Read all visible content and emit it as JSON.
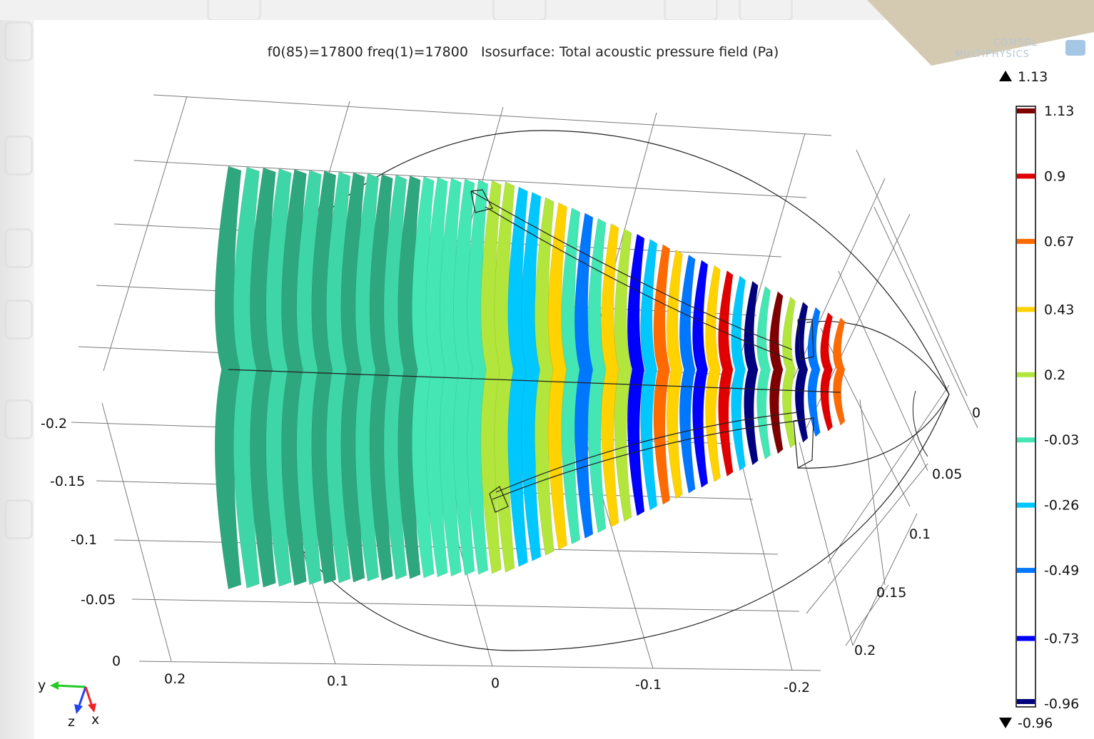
{
  "plot_title": "f0(85)=17800 freq(1)=17800   Isosurface: Total acoustic pressure field (Pa)",
  "logo": {
    "line1": "COMSOL",
    "line2": "MULTIPHYSICS"
  },
  "colors": {
    "bg": "#ffffff",
    "grid": "#7a7a7a",
    "outline": "#222222",
    "colormap": [
      "#00007f",
      "#0000ff",
      "#0077ff",
      "#00c8ff",
      "#44e6b4",
      "#b2e63c",
      "#ffd200",
      "#ff6a00",
      "#e00000",
      "#7f0000"
    ]
  },
  "triad": {
    "y_label": "y",
    "z_label": "z",
    "x_label": "x"
  },
  "chart_data": {
    "type": "isosurface-3d",
    "title": "f0(85)=17800 freq(1)=17800   Isosurface: Total acoustic pressure field (Pa)",
    "colormap": "rainbow",
    "color_range": {
      "max": 1.13,
      "min": -0.96
    },
    "range_markers": {
      "max_label": "1.13",
      "min_label": "-0.96"
    },
    "levels": [
      1.13,
      0.9,
      0.67,
      0.43,
      0.2,
      -0.03,
      -0.26,
      -0.49,
      -0.73,
      -0.96
    ],
    "level_colors": [
      "#7f0000",
      "#e00000",
      "#ff6a00",
      "#ffd200",
      "#b2e63c",
      "#44e6b4",
      "#00c8ff",
      "#0077ff",
      "#0000ff",
      "#00007f"
    ],
    "axes": {
      "vertical_ticks": [
        "-0.2",
        "-0.15",
        "-0.1",
        "-0.05",
        "0"
      ],
      "bottom_ticks": [
        "0.2",
        "0.1",
        "0",
        "-0.1",
        "-0.2"
      ],
      "right_ticks": [
        "0",
        "0.05",
        "0.1",
        "0.15",
        "0.2"
      ]
    },
    "grid": true,
    "legend": "right"
  }
}
